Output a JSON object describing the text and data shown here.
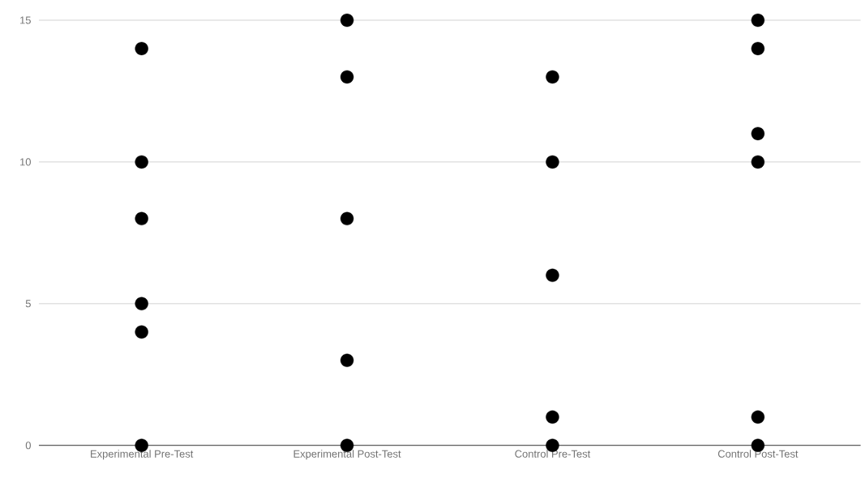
{
  "chart_data": {
    "type": "scatter",
    "categories": [
      "Experimental Pre-Test",
      "Experimental Post-Test",
      "Control Pre-Test",
      "Control Post-Test"
    ],
    "series": [
      {
        "color": "#000000",
        "values": [
          14,
          15,
          13,
          15
        ]
      },
      {
        "color": "#000000",
        "values": [
          10,
          13,
          10,
          14
        ]
      },
      {
        "color": "#000000",
        "values": [
          8,
          8,
          6,
          11
        ]
      },
      {
        "color": "#000000",
        "values": [
          5,
          3,
          1,
          10
        ]
      },
      {
        "color": "#000000",
        "values": [
          4,
          0,
          0,
          1
        ]
      },
      {
        "color": "#000000",
        "values": [
          0,
          null,
          null,
          0
        ]
      }
    ],
    "ylim": [
      0,
      15
    ],
    "yticks": [
      0,
      5,
      10,
      15
    ],
    "grid": "y"
  }
}
